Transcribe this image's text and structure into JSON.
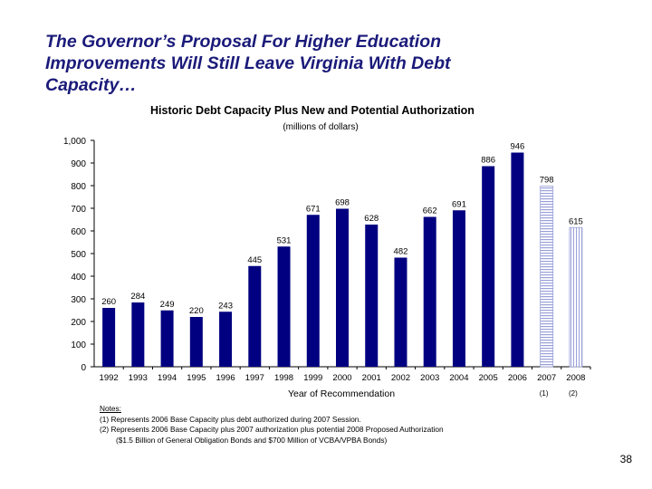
{
  "slide": {
    "title_lines": [
      "The Governor’s Proposal For Higher Education",
      "Improvements Will Still Leave Virginia With Debt",
      "Capacity…"
    ],
    "page_number": "38"
  },
  "colors": {
    "title": "#1a1a7a",
    "bar": "#000080",
    "hatch": "#9aa0d8"
  },
  "chart_data": {
    "type": "bar",
    "title": "Historic Debt Capacity Plus New and Potential Authorization",
    "subtitle": "(millions of dollars)",
    "xlabel": "Year of Recommendation",
    "ylabel": "",
    "ylim": [
      0,
      1000
    ],
    "yticks": [
      0,
      100,
      200,
      300,
      400,
      500,
      600,
      700,
      800,
      900,
      1000
    ],
    "ytick_labels": [
      "0",
      "100",
      "200",
      "300",
      "400",
      "500",
      "600",
      "700",
      "800",
      "900",
      "1,000"
    ],
    "categories": [
      "1992",
      "1993",
      "1994",
      "1995",
      "1996",
      "1997",
      "1998",
      "1999",
      "2000",
      "2001",
      "2002",
      "2003",
      "2004",
      "2005",
      "2006",
      "2007",
      "2008"
    ],
    "values": [
      260,
      284,
      249,
      220,
      243,
      445,
      531,
      671,
      698,
      628,
      482,
      662,
      691,
      886,
      946,
      798,
      615
    ],
    "value_labels": [
      "260",
      "284",
      "249",
      "220",
      "243",
      "445",
      "531",
      "671",
      "698",
      "628",
      "482",
      "662",
      "691",
      "886",
      "946",
      "798",
      "615"
    ],
    "bar_styles": [
      "solid",
      "solid",
      "solid",
      "solid",
      "solid",
      "solid",
      "solid",
      "solid",
      "solid",
      "solid",
      "solid",
      "solid",
      "solid",
      "solid",
      "solid",
      "hatched",
      "hatched-light"
    ],
    "footnote_marks": [
      "",
      "",
      "",
      "",
      "",
      "",
      "",
      "",
      "",
      "",
      "",
      "",
      "",
      "",
      "",
      "(1)",
      "(2)"
    ]
  },
  "notes": {
    "heading": "Notes:",
    "lines": [
      "(1)  Represents 2006 Base Capacity plus debt authorized during 2007 Session.",
      "(2)  Represents 2006 Base Capacity plus 2007 authorization plus potential 2008 Proposed Authorization",
      "($1.5 Billion of General Obligation Bonds and $700 Million of VCBA/VPBA Bonds)"
    ]
  }
}
